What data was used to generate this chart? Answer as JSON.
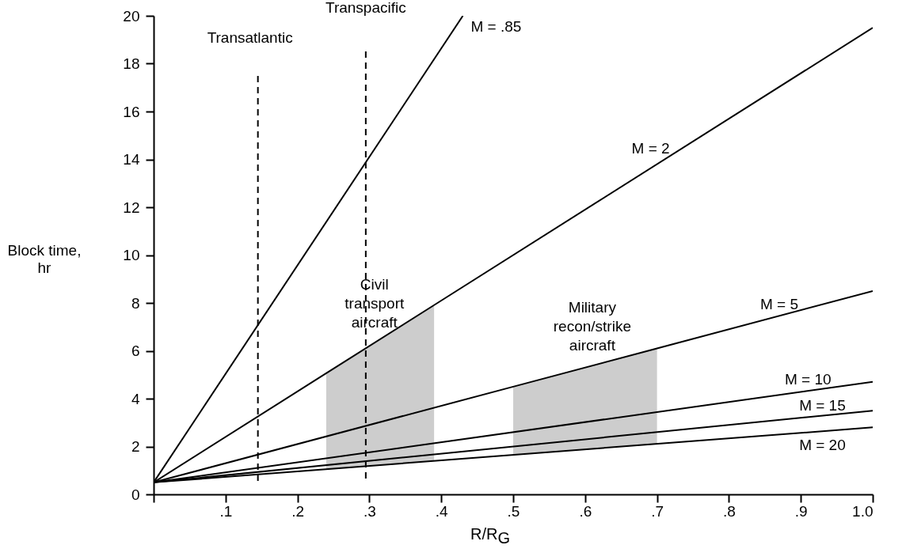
{
  "chart_data": {
    "type": "line",
    "xlabel": "R/R$_{G}$",
    "ylabel": "Block time, hr",
    "xlim": [
      0,
      1
    ],
    "ylim": [
      0,
      20
    ],
    "xticks": [
      {
        "value": 0,
        "label": null
      },
      {
        "value": 0.1,
        "label": ".1"
      },
      {
        "value": 0.2,
        "label": ".2"
      },
      {
        "value": 0.3,
        "label": ".3"
      },
      {
        "value": 0.4,
        "label": ".4"
      },
      {
        "value": 0.5,
        "label": ".5"
      },
      {
        "value": 0.6,
        "label": ".6"
      },
      {
        "value": 0.7,
        "label": ".7"
      },
      {
        "value": 0.8,
        "label": ".8"
      },
      {
        "value": 0.9,
        "label": ".9"
      },
      {
        "value": 1,
        "label": "1.0"
      }
    ],
    "yticks": [
      0,
      2,
      4,
      6,
      8,
      10,
      12,
      14,
      16,
      18,
      20
    ],
    "grid": false,
    "marker": "none",
    "line_style": "solid",
    "series": [
      {
        "name": "M = .85",
        "color": "#000000",
        "x": [
          0,
          0.43
        ],
        "values": [
          0.5,
          20
        ]
      },
      {
        "name": "M = 2",
        "color": "#000000",
        "x": [
          0,
          0.24,
          0.39,
          1
        ],
        "values": [
          0.5,
          5.06,
          7.91,
          19.5
        ],
        "upper": [
          null,
          5.06,
          7.91,
          null
        ],
        "lower": [
          null,
          1.05,
          1.4,
          null
        ]
      },
      {
        "name": "M = 5",
        "color": "#000000",
        "x": [
          0,
          0.5,
          0.7,
          1
        ],
        "values": [
          0.5,
          4.5,
          6.1,
          8.5
        ],
        "upper": [
          null,
          4.5,
          6.1,
          null
        ],
        "lower": [
          null,
          1.65,
          2.1,
          null
        ]
      },
      {
        "name": "M = 10",
        "color": "#000000",
        "x": [
          0,
          1
        ],
        "values": [
          0.5,
          4.7
        ]
      },
      {
        "name": "M = 15",
        "color": "#000000",
        "x": [
          0,
          1
        ],
        "values": [
          0.5,
          3.5
        ]
      },
      {
        "name": "M = 20",
        "color": "#000000",
        "x": [
          0,
          1
        ],
        "values": [
          0.5,
          2.8
        ]
      }
    ],
    "annotations": [
      "Civil transport aircraft",
      "Military recon/strike aircraft"
    ],
    "ref_lines": [
      {
        "axis": "x",
        "value": 0.145,
        "label": "Transatlantic",
        "line_style": "dashed",
        "color": "#000000"
      },
      {
        "axis": "x",
        "value": 0.295,
        "label": "Transpacific",
        "line_style": "dashed",
        "color": "#000000"
      }
    ]
  }
}
